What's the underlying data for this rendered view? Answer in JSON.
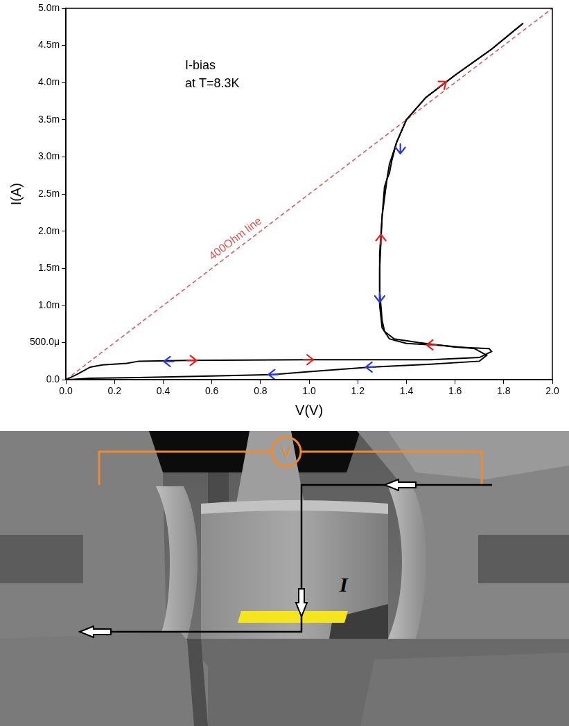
{
  "chart_data": {
    "type": "line",
    "x_label": "V(V)",
    "y_label": "I(A)",
    "xlim": [
      0,
      2
    ],
    "xticks": [
      {
        "value": 0,
        "label": "0.0"
      },
      0.2,
      0.4,
      0.6,
      0.8,
      {
        "value": 1,
        "label": "1.0"
      },
      1.2,
      1.4,
      1.6,
      1.8,
      {
        "value": 2,
        "label": "2.0"
      }
    ],
    "ylim": [
      0,
      0.005
    ],
    "yticks": [
      {
        "value": 0,
        "label": "0.0"
      },
      {
        "value": 0.0005,
        "label": "500.0μ"
      },
      {
        "value": 0.001,
        "label": "1.0m"
      },
      {
        "value": 0.0015,
        "label": "1.5m"
      },
      {
        "value": 0.002,
        "label": "2.0m"
      },
      {
        "value": 0.0025,
        "label": "2.5m"
      },
      {
        "value": 0.003,
        "label": "3.0m"
      },
      {
        "value": 0.0035,
        "label": "3.5m"
      },
      {
        "value": 0.004,
        "label": "4.0m"
      },
      {
        "value": 0.0045,
        "label": "4.5m"
      },
      {
        "value": 0.005,
        "label": "5.0m"
      }
    ],
    "grid": false,
    "series": [
      {
        "color": "#000000",
        "line_style": "solid",
        "x": [
          0,
          0.05,
          0.1,
          0.15,
          0.25,
          0.3,
          0.5,
          1.0,
          1.5,
          1.7,
          1.75,
          1.74,
          1.6,
          1.45,
          1.35,
          1.31,
          1.3,
          1.29,
          1.29,
          1.3,
          1.31,
          1.32,
          1.33,
          1.34,
          1.36,
          1.4,
          1.48,
          1.6,
          1.75,
          1.88
        ],
        "values": [
          0,
          8e-05,
          0.00017,
          0.0002,
          0.00022,
          0.00025,
          0.00026,
          0.00027,
          0.00027,
          0.0003,
          0.00038,
          0.00042,
          0.00044,
          0.0005,
          0.00055,
          0.00065,
          0.0008,
          0.0012,
          0.0017,
          0.0022,
          0.0026,
          0.0027,
          0.00278,
          0.00295,
          0.0032,
          0.0035,
          0.0038,
          0.0041,
          0.00445,
          0.0048
        ]
      },
      {
        "color": "#000000",
        "line_style": "solid",
        "x": [
          1.88,
          1.75,
          1.6,
          1.48,
          1.4,
          1.36,
          1.33,
          1.32,
          1.3,
          1.29,
          1.29,
          1.3,
          1.33,
          1.4,
          1.55,
          1.68,
          1.73,
          1.7,
          1.5,
          1.25,
          1.0,
          0.85,
          0.6,
          0.3,
          0.1,
          0
        ],
        "values": [
          0.0048,
          0.00445,
          0.0041,
          0.0038,
          0.0035,
          0.0032,
          0.0029,
          0.0027,
          0.0022,
          0.0015,
          0.001,
          0.0007,
          0.00055,
          0.00049,
          0.00046,
          0.00042,
          0.00033,
          0.00025,
          0.00021,
          0.00017,
          0.00011,
          7e-05,
          5e-05,
          3e-05,
          2e-05,
          0
        ]
      },
      {
        "name": "400Ohm line",
        "color": "#e05050",
        "line_style": "dashed",
        "x": [
          0,
          2
        ],
        "values": [
          0,
          0.005
        ]
      }
    ],
    "annotations": [
      {
        "text": "I-bias"
      },
      {
        "text": "at T=8.3K"
      }
    ],
    "arrows": [
      {
        "x": 0.52,
        "y": 0.00026,
        "direction": "right",
        "color": "#e02020"
      },
      {
        "x": 0.42,
        "y": 0.000245,
        "direction": "left",
        "color": "#2a3ad0"
      },
      {
        "x": 1.0,
        "y": 0.00027,
        "direction": "right",
        "color": "#e02020"
      },
      {
        "x": 1.5,
        "y": 0.00047,
        "direction": "left",
        "color": "#e02020"
      },
      {
        "x": 1.295,
        "y": 0.0019,
        "direction": "up",
        "color": "#e02020"
      },
      {
        "x": 1.55,
        "y": 0.00398,
        "direction": "up-right",
        "color": "#e02020"
      },
      {
        "x": 1.375,
        "y": 0.0031,
        "direction": "down",
        "color": "#2a3ad0"
      },
      {
        "x": 1.29,
        "y": 0.0011,
        "direction": "down",
        "color": "#2a3ad0"
      },
      {
        "x": 1.25,
        "y": 0.00017,
        "direction": "left",
        "color": "#2a3ad0"
      },
      {
        "x": 0.85,
        "y": 7e-05,
        "direction": "left",
        "color": "#2a3ad0"
      }
    ]
  },
  "diagram": {
    "voltmeter_label": "V",
    "current_label": "I"
  }
}
